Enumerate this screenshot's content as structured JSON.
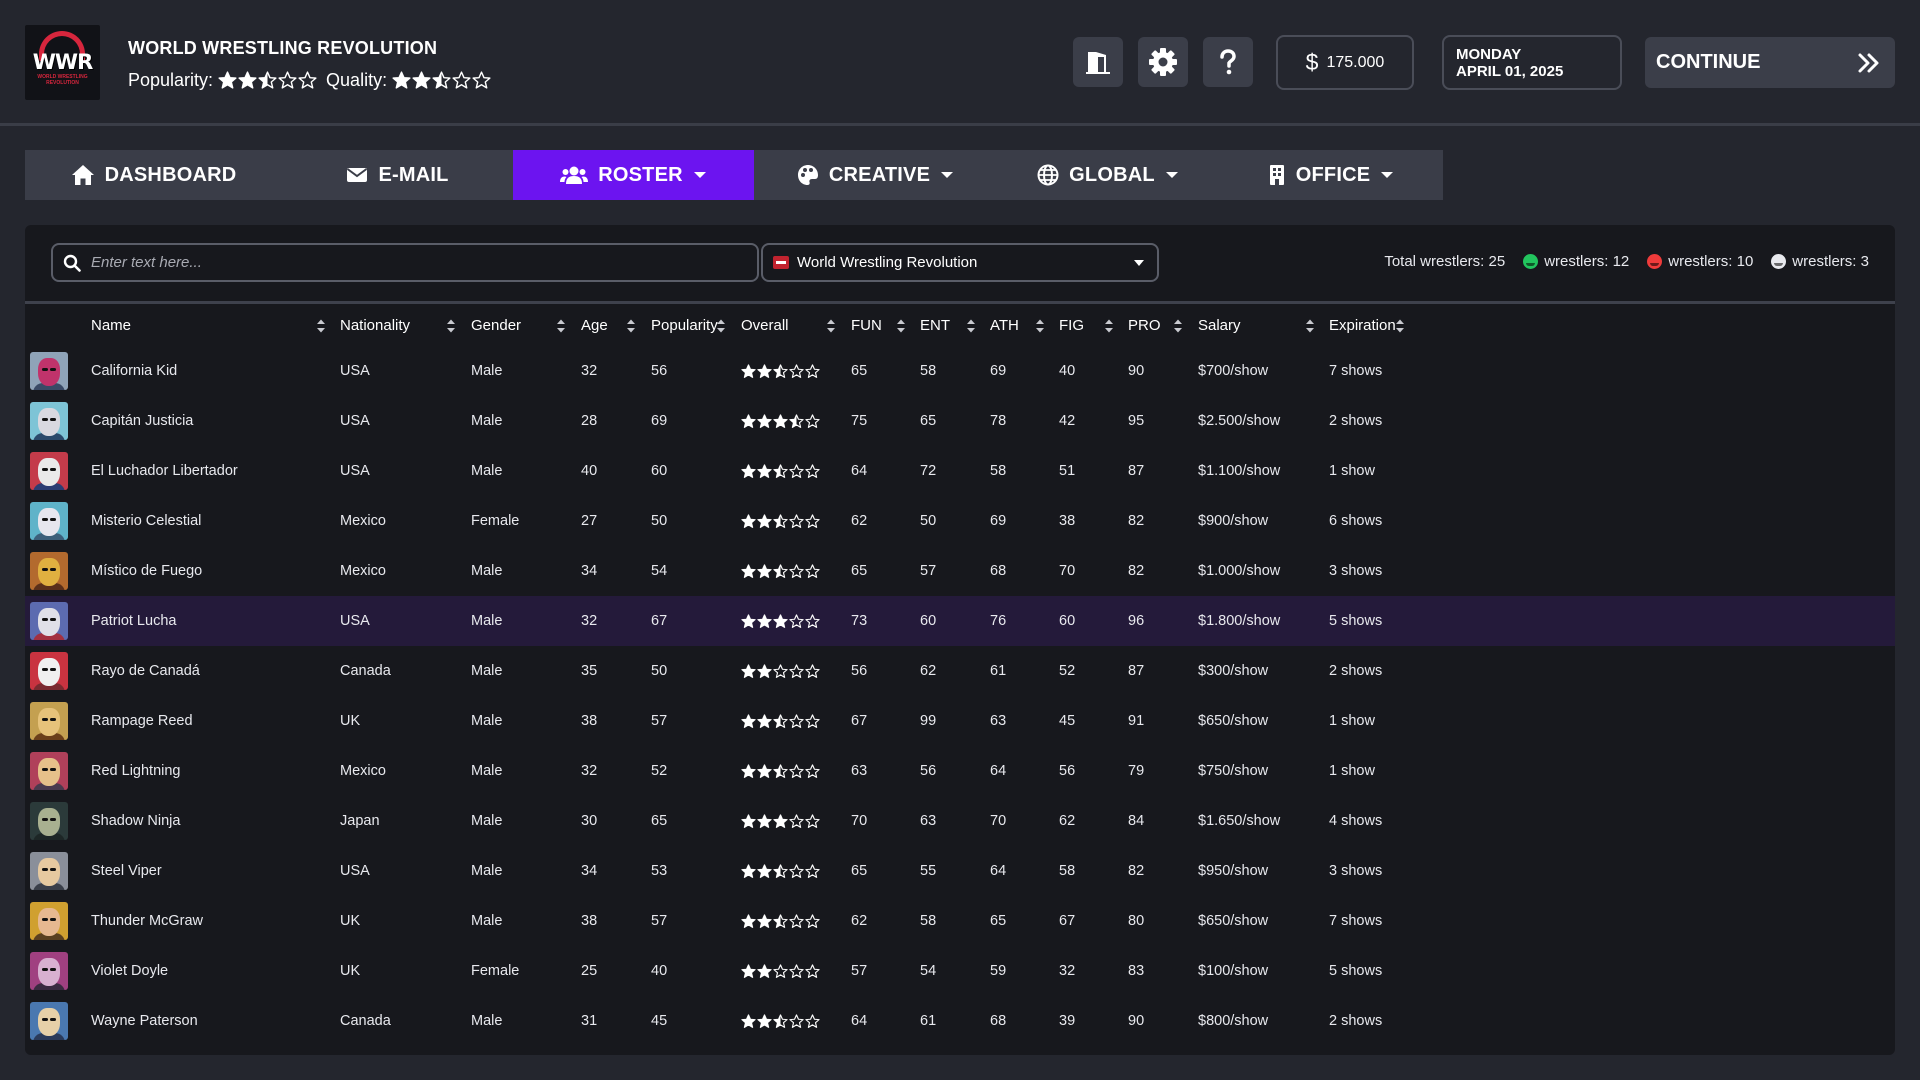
{
  "header": {
    "promotion_name": "WORLD WRESTLING REVOLUTION",
    "popularity_label": "Popularity:",
    "popularity_stars": 2.5,
    "quality_label": "Quality:",
    "quality_stars": 2.5,
    "logo_text": "WWR",
    "logo_subtext": "WORLD WRESTLING REVOLUTION",
    "money": "175.000",
    "money_symbol": "$",
    "date_line1": "MONDAY",
    "date_line2": "APRIL 01, 2025",
    "continue_label": "CONTINUE",
    "buttons": [
      {
        "name": "office-door-button",
        "icon": "door-icon"
      },
      {
        "name": "settings-button",
        "icon": "gear-icon"
      },
      {
        "name": "help-button",
        "icon": "question-icon"
      }
    ]
  },
  "nav": {
    "items": [
      {
        "label": "DASHBOARD",
        "icon": "home-icon",
        "dropdown": false,
        "active": false
      },
      {
        "label": "E-MAIL",
        "icon": "envelope-icon",
        "dropdown": false,
        "active": false
      },
      {
        "label": "ROSTER",
        "icon": "users-icon",
        "dropdown": true,
        "active": true
      },
      {
        "label": "CREATIVE",
        "icon": "palette-icon",
        "dropdown": true,
        "active": false
      },
      {
        "label": "GLOBAL",
        "icon": "globe-icon",
        "dropdown": true,
        "active": false
      },
      {
        "label": "OFFICE",
        "icon": "building-icon",
        "dropdown": true,
        "active": false
      }
    ],
    "active_color": "#6c14f0"
  },
  "filters": {
    "search_placeholder": "Enter text here...",
    "promotion_selected": "World Wrestling Revolution"
  },
  "stats": {
    "total_label": "Total wrestlers:",
    "total": "25",
    "happy_label": "wrestlers:",
    "happy": "12",
    "angry_label": "wrestlers:",
    "angry": "10",
    "neutral_label": "wrestlers:",
    "neutral": "3",
    "colors": {
      "happy": "#22c55e",
      "angry": "#ef3b3b",
      "neutral": "#e8e9ee"
    }
  },
  "table": {
    "columns": [
      "Name",
      "Nationality",
      "Gender",
      "Age",
      "Popularity",
      "Overall",
      "FUN",
      "ENT",
      "ATH",
      "FIG",
      "PRO",
      "Salary",
      "Expiration"
    ],
    "rows": [
      {
        "name": "California Kid",
        "nationality": "USA",
        "gender": "Male",
        "age": "32",
        "popularity": "56",
        "overall": 2.5,
        "fun": "65",
        "ent": "58",
        "ath": "69",
        "fig": "40",
        "pro": "90",
        "salary": "$700/show",
        "expiration": "7 shows",
        "highlight": false
      },
      {
        "name": "Capitán Justicia",
        "nationality": "USA",
        "gender": "Male",
        "age": "28",
        "popularity": "69",
        "overall": 3.5,
        "fun": "75",
        "ent": "65",
        "ath": "78",
        "fig": "42",
        "pro": "95",
        "salary": "$2.500/show",
        "expiration": "2 shows",
        "highlight": false
      },
      {
        "name": "El Luchador Libertador",
        "nationality": "USA",
        "gender": "Male",
        "age": "40",
        "popularity": "60",
        "overall": 2.5,
        "fun": "64",
        "ent": "72",
        "ath": "58",
        "fig": "51",
        "pro": "87",
        "salary": "$1.100/show",
        "expiration": "1 show",
        "highlight": false
      },
      {
        "name": "Misterio Celestial",
        "nationality": "Mexico",
        "gender": "Female",
        "age": "27",
        "popularity": "50",
        "overall": 2.5,
        "fun": "62",
        "ent": "50",
        "ath": "69",
        "fig": "38",
        "pro": "82",
        "salary": "$900/show",
        "expiration": "6 shows",
        "highlight": false
      },
      {
        "name": "Místico de Fuego",
        "nationality": "Mexico",
        "gender": "Male",
        "age": "34",
        "popularity": "54",
        "overall": 2.5,
        "fun": "65",
        "ent": "57",
        "ath": "68",
        "fig": "70",
        "pro": "82",
        "salary": "$1.000/show",
        "expiration": "3 shows",
        "highlight": false
      },
      {
        "name": "Patriot Lucha",
        "nationality": "USA",
        "gender": "Male",
        "age": "32",
        "popularity": "67",
        "overall": 3,
        "fun": "73",
        "ent": "60",
        "ath": "76",
        "fig": "60",
        "pro": "96",
        "salary": "$1.800/show",
        "expiration": "5 shows",
        "highlight": true
      },
      {
        "name": "Rayo de Canadá",
        "nationality": "Canada",
        "gender": "Male",
        "age": "35",
        "popularity": "50",
        "overall": 2,
        "fun": "56",
        "ent": "62",
        "ath": "61",
        "fig": "52",
        "pro": "87",
        "salary": "$300/show",
        "expiration": "2 shows",
        "highlight": false
      },
      {
        "name": "Rampage Reed",
        "nationality": "UK",
        "gender": "Male",
        "age": "38",
        "popularity": "57",
        "overall": 2.5,
        "fun": "67",
        "ent": "99",
        "ath": "63",
        "fig": "45",
        "pro": "91",
        "salary": "$650/show",
        "expiration": "1 show",
        "highlight": false
      },
      {
        "name": "Red Lightning",
        "nationality": "Mexico",
        "gender": "Male",
        "age": "32",
        "popularity": "52",
        "overall": 2.5,
        "fun": "63",
        "ent": "56",
        "ath": "64",
        "fig": "56",
        "pro": "79",
        "salary": "$750/show",
        "expiration": "1 show",
        "highlight": false
      },
      {
        "name": "Shadow Ninja",
        "nationality": "Japan",
        "gender": "Male",
        "age": "30",
        "popularity": "65",
        "overall": 3,
        "fun": "70",
        "ent": "63",
        "ath": "70",
        "fig": "62",
        "pro": "84",
        "salary": "$1.650/show",
        "expiration": "4 shows",
        "highlight": false
      },
      {
        "name": "Steel Viper",
        "nationality": "USA",
        "gender": "Male",
        "age": "34",
        "popularity": "53",
        "overall": 2.5,
        "fun": "65",
        "ent": "55",
        "ath": "64",
        "fig": "58",
        "pro": "82",
        "salary": "$950/show",
        "expiration": "3 shows",
        "highlight": false
      },
      {
        "name": "Thunder McGraw",
        "nationality": "UK",
        "gender": "Male",
        "age": "38",
        "popularity": "57",
        "overall": 2.5,
        "fun": "62",
        "ent": "58",
        "ath": "65",
        "fig": "67",
        "pro": "80",
        "salary": "$650/show",
        "expiration": "7 shows",
        "highlight": false
      },
      {
        "name": "Violet Doyle",
        "nationality": "UK",
        "gender": "Female",
        "age": "25",
        "popularity": "40",
        "overall": 2,
        "fun": "57",
        "ent": "54",
        "ath": "59",
        "fig": "32",
        "pro": "83",
        "salary": "$100/show",
        "expiration": "5 shows",
        "highlight": false
      },
      {
        "name": "Wayne Paterson",
        "nationality": "Canada",
        "gender": "Male",
        "age": "31",
        "popularity": "45",
        "overall": 2.5,
        "fun": "64",
        "ent": "61",
        "ath": "68",
        "fig": "39",
        "pro": "90",
        "salary": "$800/show",
        "expiration": "2 shows",
        "highlight": false
      }
    ]
  },
  "colors": {
    "background": "#24262e",
    "panel": "#17181d",
    "highlight_row": "#241a3a",
    "logo_red": "#d7263d"
  }
}
